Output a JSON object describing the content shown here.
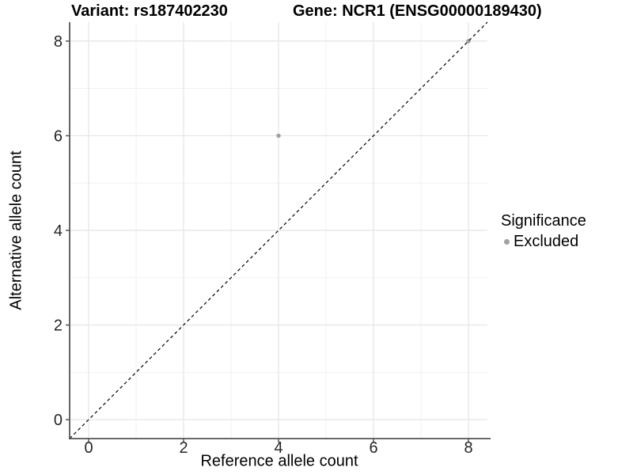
{
  "chart_data": {
    "type": "scatter",
    "title_left": "Variant: rs187402230",
    "title_right": "Gene: NCR1 (ENSG00000189430)",
    "xlabel": "Reference allele count",
    "ylabel": "Alternative allele count",
    "xlim": [
      -0.4,
      8.4
    ],
    "ylim": [
      -0.4,
      8.4
    ],
    "x_ticks": [
      0,
      2,
      4,
      6,
      8
    ],
    "y_ticks": [
      0,
      2,
      4,
      6,
      8
    ],
    "x_minor_ticks": [
      1,
      3,
      5,
      7
    ],
    "y_minor_ticks": [
      1,
      3,
      5,
      7
    ],
    "grid": "major+minor",
    "reference_line": {
      "type": "identity",
      "equation": "y = x",
      "style": "dashed",
      "color": "#000000"
    },
    "series": [
      {
        "name": "Excluded",
        "color": "#a1a1a1",
        "points": [
          [
            4,
            6
          ],
          [
            8,
            8
          ]
        ]
      }
    ],
    "legend": {
      "title": "Significance",
      "position": "right",
      "items": [
        {
          "label": "Excluded",
          "color": "#a1a1a1",
          "marker": "circle"
        }
      ]
    }
  },
  "colors": {
    "background": "#ffffff",
    "grid_major": "#e4e4e4",
    "grid_minor": "#f1f1f1",
    "axis_line": "#545454",
    "tick_text": "#262626",
    "point": "#a1a1a1",
    "dashed_line": "#000000"
  }
}
